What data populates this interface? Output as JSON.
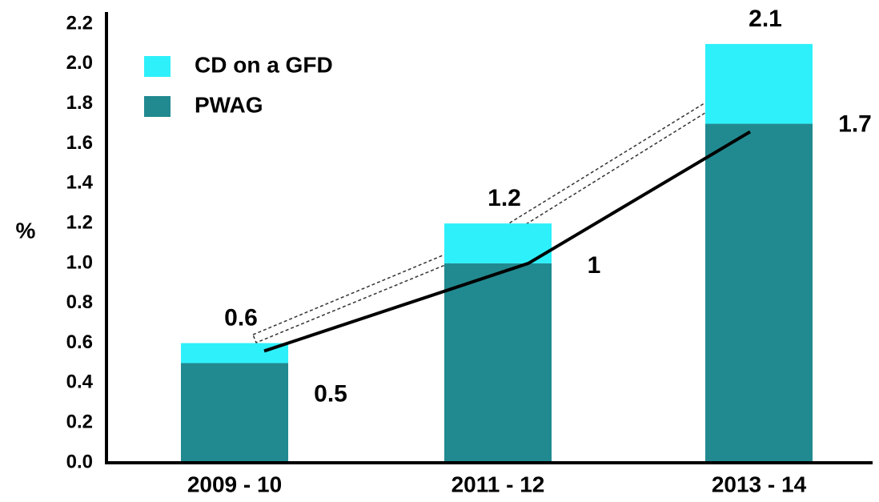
{
  "chart_data": {
    "type": "stacked_bar",
    "y_label": "%",
    "categories": [
      "2009 - 10",
      "2011 - 12",
      "2013 - 14"
    ],
    "series": [
      {
        "name": "CD on a GFD",
        "color": "#2ef0fa",
        "values": [
          0.1,
          0.2,
          0.4
        ]
      },
      {
        "name": "PWAG",
        "color": "#218a90",
        "values": [
          0.5,
          1.0,
          1.7
        ]
      }
    ],
    "totals": [
      0.6,
      1.2,
      2.1
    ],
    "ylim": [
      0,
      2.2
    ],
    "yticks": [
      {
        "value": 0,
        "label": "0.0"
      },
      0.2,
      0.4,
      0.6,
      0.8,
      {
        "value": 1,
        "label": "1.0"
      },
      1.2,
      1.4,
      1.6,
      1.8,
      {
        "value": 2,
        "label": "2.0"
      },
      2.2
    ]
  }
}
